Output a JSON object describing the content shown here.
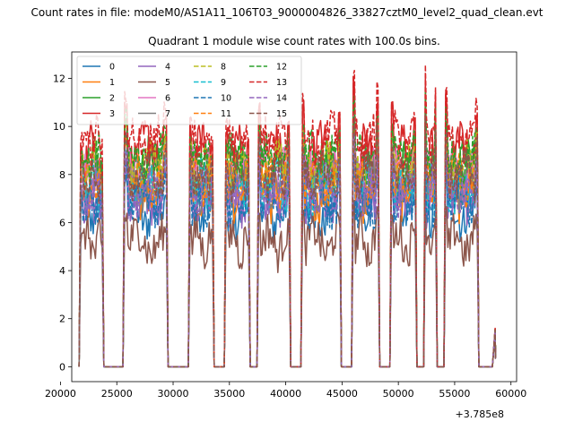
{
  "figure": {
    "suptitle": "Count rates in file: modeM0/AS1A11_106T03_9000004826_33827cztM0_level2_quad_clean.evt",
    "background": "#ffffff"
  },
  "chart_data": {
    "type": "line",
    "title": "Quadrant 1 module wise count rates with 100.0s bins.",
    "xlabel": "",
    "ylabel": "",
    "offset_label": "+3.785e8",
    "xlim": [
      21000,
      60500
    ],
    "ylim": [
      -0.62,
      13.1
    ],
    "xticks": [
      20000,
      25000,
      30000,
      35000,
      40000,
      45000,
      50000,
      55000,
      60000
    ],
    "xtick_labels": [
      "20000",
      "25000",
      "30000",
      "35000",
      "40000",
      "45000",
      "50000",
      "55000",
      "60000"
    ],
    "yticks": [
      0,
      2,
      4,
      6,
      8,
      10,
      12
    ],
    "ytick_labels": [
      "0",
      "2",
      "4",
      "6",
      "8",
      "10",
      "12"
    ],
    "grid": false,
    "legend": {
      "placement": "top-left",
      "columns": 4
    },
    "orbit_segments": [
      {
        "start": 21800,
        "end": 23700,
        "peak": 9.6,
        "pre_gap": 0
      },
      {
        "start": 25700,
        "end": 29400,
        "peak": 11.3,
        "pre_gap": 0
      },
      {
        "start": 31500,
        "end": 33500,
        "peak": 10.3,
        "pre_gap": 0
      },
      {
        "start": 34700,
        "end": 36700,
        "peak": 10.2,
        "pre_gap": 0
      },
      {
        "start": 37600,
        "end": 40300,
        "peak": 11.0,
        "pre_gap": 0
      },
      {
        "start": 41500,
        "end": 44800,
        "peak": 11.2,
        "pre_gap": 0
      },
      {
        "start": 46000,
        "end": 48200,
        "peak": 12.1,
        "pre_gap": 0
      },
      {
        "start": 49400,
        "end": 51500,
        "peak": 11.0,
        "pre_gap": 0
      },
      {
        "start": 52400,
        "end": 53300,
        "peak": 12.4,
        "pre_gap": 0
      },
      {
        "start": 54200,
        "end": 57000,
        "peak": 11.4,
        "pre_gap": 0
      }
    ],
    "gaps": [
      {
        "start": 23700,
        "end": 25700
      },
      {
        "start": 29400,
        "end": 31500
      },
      {
        "start": 33500,
        "end": 34700
      },
      {
        "start": 36700,
        "end": 37600
      },
      {
        "start": 40300,
        "end": 41500
      },
      {
        "start": 44800,
        "end": 46000
      },
      {
        "start": 48200,
        "end": 49400
      },
      {
        "start": 51500,
        "end": 52400
      },
      {
        "start": 53300,
        "end": 54200
      },
      {
        "start": 57000,
        "end": 58500
      }
    ],
    "tail": {
      "x": 58600,
      "values": [
        1.6,
        0.4,
        0.9
      ]
    },
    "series": [
      {
        "name": "0",
        "color": "#1f77b4",
        "dash": "solid",
        "level": 6.4
      },
      {
        "name": "1",
        "color": "#ff7f0e",
        "dash": "solid",
        "level": 7.2
      },
      {
        "name": "2",
        "color": "#2ca02c",
        "dash": "solid",
        "level": 8.4
      },
      {
        "name": "3",
        "color": "#d62728",
        "dash": "solid",
        "level": 9.1
      },
      {
        "name": "4",
        "color": "#9467bd",
        "dash": "solid",
        "level": 7.0
      },
      {
        "name": "5",
        "color": "#8c564b",
        "dash": "solid",
        "level": 5.2
      },
      {
        "name": "6",
        "color": "#e377c2",
        "dash": "solid",
        "level": 8.0
      },
      {
        "name": "7",
        "color": "#7f7f7f",
        "dash": "solid",
        "level": 7.6
      },
      {
        "name": "8",
        "color": "#bcbd22",
        "dash": "dashed",
        "level": 8.2
      },
      {
        "name": "9",
        "color": "#17becf",
        "dash": "dashed",
        "level": 7.5
      },
      {
        "name": "10",
        "color": "#1f77b4",
        "dash": "dashed",
        "level": 6.9
      },
      {
        "name": "11",
        "color": "#ff7f0e",
        "dash": "dashed",
        "level": 7.8
      },
      {
        "name": "12",
        "color": "#2ca02c",
        "dash": "dashed",
        "level": 8.6
      },
      {
        "name": "13",
        "color": "#d62728",
        "dash": "dashed",
        "level": 9.4
      },
      {
        "name": "14",
        "color": "#9467bd",
        "dash": "dashed",
        "level": 7.3
      },
      {
        "name": "15",
        "color": "#8c564b",
        "dash": "dashed",
        "level": 8.0
      }
    ]
  }
}
